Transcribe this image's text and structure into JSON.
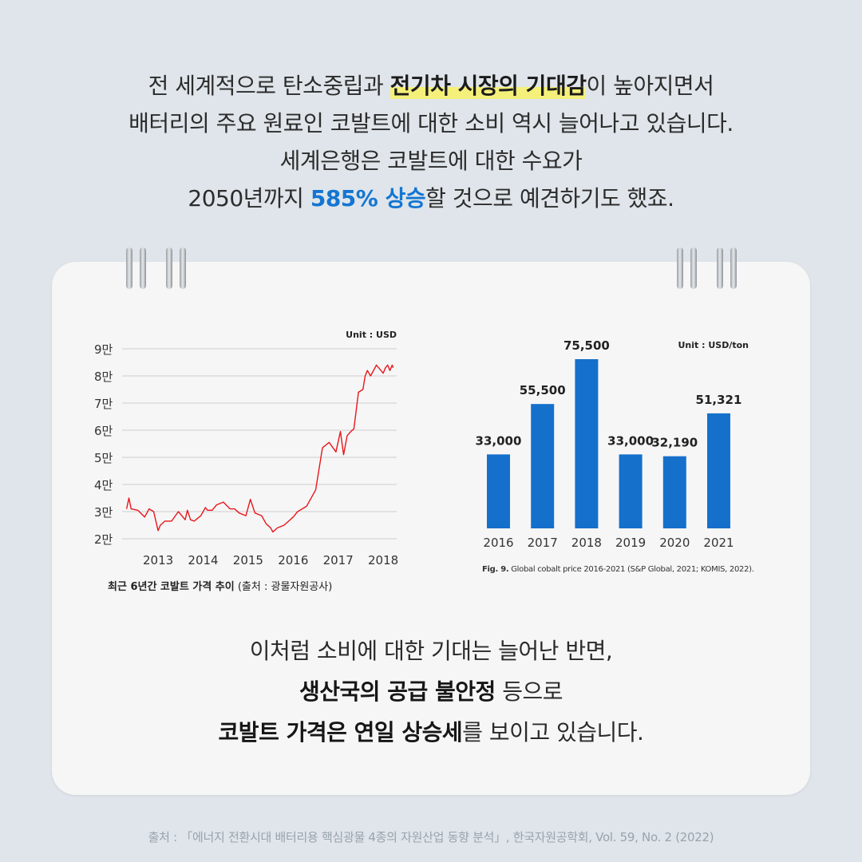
{
  "intro": {
    "l1_pre": "전 세계적으로 탄소중립과 ",
    "l1_hl": "전기차 시장의 기대감",
    "l1_post": "이 높아지면서",
    "l2": "배터리의 주요 원료인 코발트에 대한 소비 역시 늘어나고 있습니다.",
    "l3": "세계은행은 코발트에 대한 수요가",
    "l4_pre": "2050년까지 ",
    "l4_hl": "585% 상승",
    "l4_post": "할 것으로 예견하기도 했죠."
  },
  "colors": {
    "background": "#dfe5ea",
    "card": "#f6f6f6",
    "line": "#e8161b",
    "bar": "#1570cc",
    "highlight_yellow": "#f4f07a",
    "highlight_blue": "#1476d2"
  },
  "captions": {
    "left_bold": "최근 6년간 코발트 가격 추이",
    "left_rest": " (출처 : 광물자원공사)",
    "right_bold": "Fig. 9.",
    "right_rest": " Global cobalt price 2016-2021 (S&P Global, 2021; KOMIS, 2022)."
  },
  "conclusion": {
    "l1": "이처럼 소비에 대한 기대는 늘어난 반면,",
    "l2_bold": "생산국의 공급 불안정",
    "l2_rest": " 등으로",
    "l3_bold1": "코발트 가격은 연일 상승세",
    "l3_rest": "를 보이고 있습니다."
  },
  "source": "출처 : 「에너지 전환시대 배터리용 핵심광물 4종의 자원산업 동향 분석」, 한국자원공학회, Vol. 59, No. 2 (2022)",
  "chart_data": [
    {
      "type": "line",
      "unit": "Unit : USD",
      "ylim": [
        20000,
        90000
      ],
      "y_ticks": [
        20000,
        30000,
        40000,
        50000,
        60000,
        70000,
        80000,
        90000
      ],
      "y_tick_labels": [
        "2만",
        "3만",
        "4만",
        "5만",
        "6만",
        "7만",
        "8만",
        "9만"
      ],
      "xlim": [
        2012.2,
        2018.3
      ],
      "x_ticks": [
        2013,
        2014,
        2015,
        2016,
        2017,
        2018
      ],
      "x_tick_labels": [
        "2013",
        "2014",
        "2015",
        "2016",
        "2017",
        "2018"
      ],
      "grid": true,
      "x": [
        2012.3,
        2012.35,
        2012.4,
        2012.55,
        2012.7,
        2012.8,
        2012.9,
        2013.0,
        2013.05,
        2013.15,
        2013.3,
        2013.45,
        2013.6,
        2013.65,
        2013.72,
        2013.8,
        2013.95,
        2014.05,
        2014.1,
        2014.2,
        2014.3,
        2014.45,
        2014.6,
        2014.7,
        2014.8,
        2014.95,
        2015.05,
        2015.15,
        2015.3,
        2015.4,
        2015.5,
        2015.55,
        2015.65,
        2015.8,
        2015.9,
        2016.0,
        2016.1,
        2016.3,
        2016.5,
        2016.65,
        2016.8,
        2016.95,
        2017.05,
        2017.12,
        2017.2,
        2017.28,
        2017.35,
        2017.45,
        2017.55,
        2017.6,
        2017.65,
        2017.72,
        2017.85,
        2017.95,
        2018.0,
        2018.05,
        2018.1,
        2018.15,
        2018.2,
        2018.22
      ],
      "y": [
        31000,
        35000,
        31000,
        30500,
        28000,
        31000,
        30000,
        23000,
        25000,
        26500,
        26500,
        30000,
        27000,
        30500,
        27000,
        26500,
        28500,
        31500,
        30500,
        30500,
        32500,
        33500,
        31000,
        31000,
        29500,
        28500,
        34500,
        29500,
        28500,
        25500,
        24000,
        22500,
        24000,
        25000,
        26500,
        28000,
        30000,
        32000,
        38000,
        53500,
        55500,
        52000,
        59500,
        51000,
        58000,
        59500,
        60500,
        74000,
        75000,
        80000,
        82000,
        80000,
        84000,
        82000,
        81000,
        83000,
        84000,
        82000,
        84000,
        83000
      ],
      "series_color": "#e8161b"
    },
    {
      "type": "bar",
      "unit": "Unit : USD/ton",
      "categories": [
        "2016",
        "2017",
        "2018",
        "2019",
        "2020",
        "2021"
      ],
      "values": [
        33000,
        55500,
        75500,
        33000,
        32190,
        51321
      ],
      "value_labels": [
        "33,000",
        "55,500",
        "75,500",
        "33,000",
        "32,190",
        "51,321"
      ],
      "ylim": [
        0,
        80000
      ],
      "series_color": "#1570cc"
    }
  ]
}
